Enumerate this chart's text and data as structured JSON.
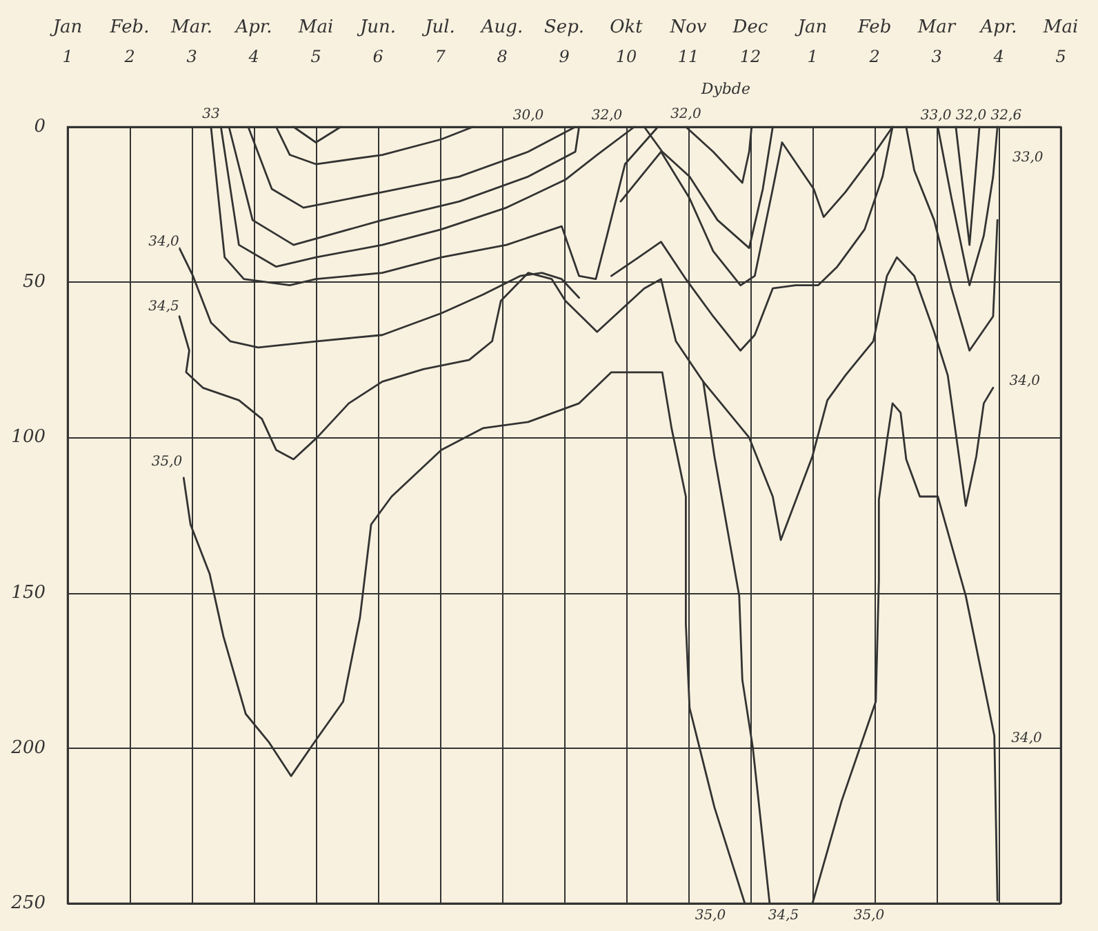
{
  "chart_data": {
    "type": "line",
    "ylabel": "Dybde",
    "marker": "none",
    "line_style": "solid",
    "grid": true,
    "xlim": [
      1,
      17
    ],
    "ylim": [
      250,
      0
    ],
    "yticks": [
      0,
      50,
      100,
      150,
      200,
      250
    ],
    "xticks": [
      1,
      2,
      3,
      4,
      5,
      6,
      7,
      8,
      9,
      10,
      11,
      12
    ],
    "x2lim": [
      -11,
      5
    ],
    "x2ticks": [
      1,
      2,
      3,
      4,
      5
    ],
    "series": [
      {
        "color": "#333333",
        "x": [
          2.8,
          3.02,
          3.31,
          3.62,
          4.07,
          5.02,
          6.07,
          7.02,
          7.69,
          8.29,
          8.64,
          8.96,
          9.24
        ],
        "values": [
          39,
          48,
          63,
          69,
          71,
          69,
          67,
          60,
          54,
          48,
          47,
          49,
          55
        ]
      },
      {
        "color": "#333333",
        "x": [
          2.8,
          2.96,
          2.91,
          3.18,
          3.76,
          4.13,
          4.36,
          4.64,
          5.02,
          5.53,
          6.07,
          6.73,
          7.47,
          7.84,
          7.98,
          8.42,
          8.8,
          9.02,
          9.53,
          10.29,
          10.56,
          10.8,
          11.24,
          11.98,
          12.36,
          12.49,
          13.0,
          13.24,
          13.53,
          13.98,
          14.2,
          14.36,
          14.64,
          14.96,
          15.18,
          15.36,
          15.47,
          15.64,
          15.76,
          15.91
        ],
        "values": [
          61,
          72,
          79,
          84,
          88,
          94,
          104,
          107,
          100,
          89,
          82,
          78,
          75,
          69,
          56,
          47,
          49,
          56,
          66,
          52,
          49,
          69,
          82,
          100,
          119,
          133,
          106,
          88,
          80,
          69,
          48,
          42,
          48,
          66,
          80,
          106,
          122,
          106,
          89,
          84
        ]
      },
      {
        "color": "#333333",
        "x": [
          2.87,
          2.98,
          3.29,
          3.51,
          3.87,
          4.24,
          4.6,
          4.98,
          5.44,
          5.71,
          5.89,
          6.22,
          7.02,
          7.69,
          8.42,
          9.24,
          9.76,
          10.58,
          10.73,
          10.96,
          10.96,
          11.02,
          11.42,
          11.91
        ],
        "values": [
          113,
          128,
          144,
          164,
          189,
          198,
          209,
          198,
          185,
          158,
          128,
          119,
          104,
          97,
          95,
          89,
          79,
          79,
          97,
          119,
          160,
          187,
          219,
          250
        ]
      },
      {
        "color": "#333333",
        "x": [
          11.24,
          11.42,
          11.82,
          11.87,
          12.04,
          12.31
        ],
        "values": [
          82,
          106,
          151,
          178,
          200,
          250
        ]
      },
      {
        "color": "#333333",
        "x": [
          13.0,
          13.47,
          14.02,
          14.07,
          14.07,
          14.2,
          14.29,
          14.42,
          14.51,
          14.73,
          15.02,
          15.47,
          15.93,
          15.98
        ],
        "values": [
          250,
          217,
          185,
          146,
          120,
          101,
          89,
          92,
          107,
          119,
          119,
          151,
          196,
          249
        ]
      },
      {
        "color": "#333333",
        "x": [
          3.31,
          3.53,
          3.84,
          4.58,
          5.0,
          6.07,
          7.02,
          8.07,
          8.96,
          9.24,
          9.51,
          9.69,
          9.98,
          10.51
        ],
        "values": [
          0,
          42,
          49,
          51,
          49,
          47,
          42,
          38,
          32,
          48,
          49,
          35,
          12,
          0
        ]
      },
      {
        "color": "#333333",
        "x": [
          3.47,
          3.76,
          4.36,
          5.0,
          6.07,
          7.02,
          8.07,
          9.02,
          9.53,
          10.13
        ],
        "values": [
          0,
          38,
          45,
          42,
          38,
          33,
          26,
          17,
          9,
          0
        ]
      },
      {
        "color": "#333333",
        "x": [
          3.6,
          3.98,
          4.64,
          6.07,
          7.31,
          8.42,
          9.18,
          9.24
        ],
        "values": [
          0,
          30,
          38,
          30,
          24,
          16,
          8,
          0
        ]
      },
      {
        "color": "#333333",
        "x": [
          3.91,
          4.29,
          4.8,
          6.07,
          7.31,
          8.42,
          9.18
        ],
        "values": [
          0,
          20,
          26,
          21,
          16,
          8,
          0
        ]
      },
      {
        "color": "#333333",
        "x": [
          4.36,
          4.58,
          5.0,
          6.07,
          7.02,
          7.53
        ],
        "values": [
          0,
          9,
          12,
          9,
          4,
          0
        ]
      },
      {
        "color": "#333333",
        "x": [
          4.64,
          5.0,
          5.4
        ],
        "values": [
          0,
          5,
          0
        ]
      },
      {
        "color": "#333333",
        "x": [
          10.96,
          11.4,
          11.87,
          11.98,
          12.02
        ],
        "values": [
          0,
          8,
          18,
          8,
          0
        ]
      },
      {
        "color": "#333333",
        "x": [
          10.29,
          10.58,
          11.02,
          11.47,
          11.98,
          12.2,
          12.36
        ],
        "values": [
          0,
          8,
          16,
          30,
          39,
          20,
          0
        ]
      },
      {
        "color": "#333333",
        "x": [
          9.91,
          10.56,
          11.02,
          11.4,
          11.84,
          12.07,
          12.36,
          12.51,
          13.02,
          13.18,
          13.53,
          13.98,
          14.29
        ],
        "values": [
          24,
          8,
          23,
          40,
          51,
          48,
          20,
          5,
          20,
          29,
          21,
          9,
          0
        ]
      },
      {
        "color": "#333333",
        "x": [
          9.76,
          10.2,
          10.56,
          10.96,
          11.4,
          11.84,
          12.07,
          12.36,
          12.73,
          13.09,
          13.4,
          13.84,
          14.13,
          14.29
        ],
        "values": [
          48,
          42,
          37,
          49,
          61,
          72,
          67,
          52,
          51,
          51,
          45,
          33,
          16,
          0
        ]
      },
      {
        "color": "#333333",
        "x": [
          15.02,
          15.24,
          15.53,
          15.76,
          15.91,
          15.98
        ],
        "values": [
          0,
          23,
          51,
          35,
          16,
          0
        ]
      },
      {
        "color": "#333333",
        "x": [
          15.31,
          15.53,
          15.69
        ],
        "values": [
          0,
          38,
          0
        ]
      },
      {
        "color": "#333333",
        "x": [
          14.51,
          14.64,
          14.96,
          15.24,
          15.53,
          15.91,
          15.98
        ],
        "values": [
          0,
          14,
          30,
          52,
          72,
          61,
          30
        ]
      }
    ],
    "annotations": [
      "Jan",
      "Feb.",
      "Mar.",
      "Apr.",
      "Mai",
      "Jun.",
      "Jul.",
      "Aug.",
      "Sep.",
      "Okt",
      "Nov",
      "Dec",
      "Jan",
      "Feb",
      "Mar",
      "Apr.",
      "Mai",
      {
        "text": "34,0",
        "x": 2.55,
        "y": 37
      },
      {
        "text": "34,5",
        "x": 2.55,
        "y": 58
      },
      {
        "text": "35,0",
        "x": 2.6,
        "y": 108
      },
      {
        "text": "33",
        "x": 3.31,
        "y": 0
      },
      "30,0",
      "32,0",
      {
        "text": "32,0",
        "x": 10.96,
        "y": 0
      },
      "33,0 32,0 32,6",
      {
        "text": "33,0",
        "x": 16.47,
        "y": 10
      },
      {
        "text": "34,0",
        "x": 16.42,
        "y": 82
      },
      {
        "text": "34,0",
        "x": 16.45,
        "y": 197
      },
      "35,0",
      "34,5",
      "35,0"
    ]
  }
}
